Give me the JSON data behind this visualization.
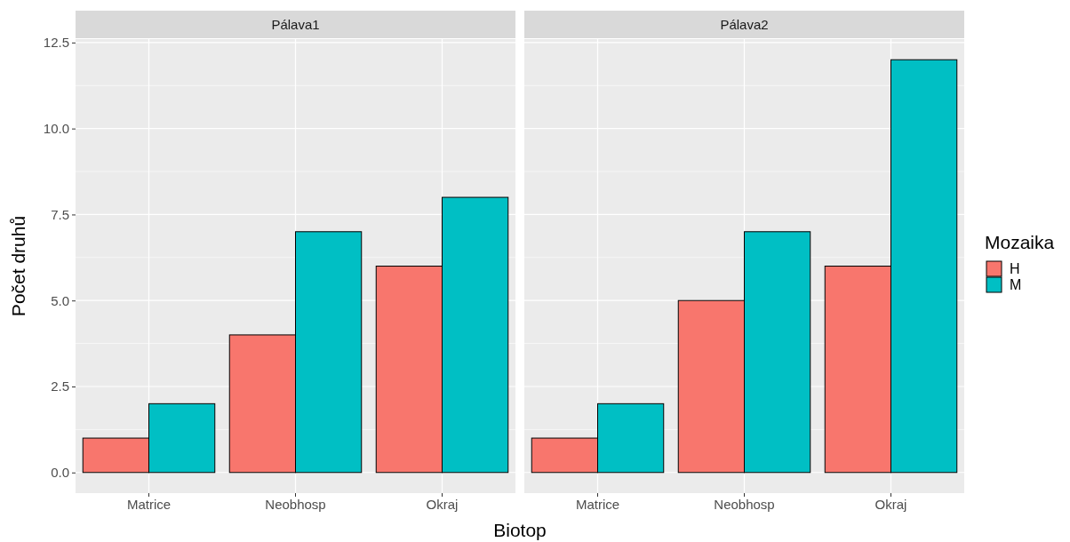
{
  "chart_data": [
    {
      "type": "bar",
      "title": "Pálava1",
      "xlabel": "Biotop",
      "legend_title": "Mozaika",
      "legend": "right",
      "ylabel": "Počet druhů",
      "categories": [
        "Matrice",
        "Neobhosp",
        "Okraj"
      ],
      "series": [
        {
          "name": "H",
          "color": "#f8766d",
          "values": [
            1,
            4,
            6
          ]
        },
        {
          "name": "M",
          "color": "#00bfc4",
          "values": [
            2,
            7,
            8
          ]
        }
      ],
      "ylim": [
        -0.6,
        12.6
      ],
      "yticks": [
        {
          "value": 0,
          "label": "0.0"
        },
        {
          "value": 2.5,
          "label": "2.5"
        },
        {
          "value": 5,
          "label": "5.0"
        },
        {
          "value": 7.5,
          "label": "7.5"
        },
        {
          "value": 10,
          "label": "10.0"
        },
        {
          "value": 12.5,
          "label": "12.5"
        }
      ],
      "grid": true
    },
    {
      "type": "bar",
      "title": "Pálava2",
      "categories": [
        "Matrice",
        "Neobhosp",
        "Okraj"
      ],
      "series": [
        {
          "color": "#f8766d",
          "values": [
            1,
            5,
            6
          ]
        },
        {
          "color": "#00bfc4",
          "values": [
            2,
            7,
            12
          ]
        }
      ],
      "ylim": [
        -0.6,
        12.6
      ],
      "yticks": [
        0,
        2.5,
        5,
        7.5,
        10,
        12.5
      ],
      "grid": true,
      "tick_labels": "x"
    }
  ]
}
